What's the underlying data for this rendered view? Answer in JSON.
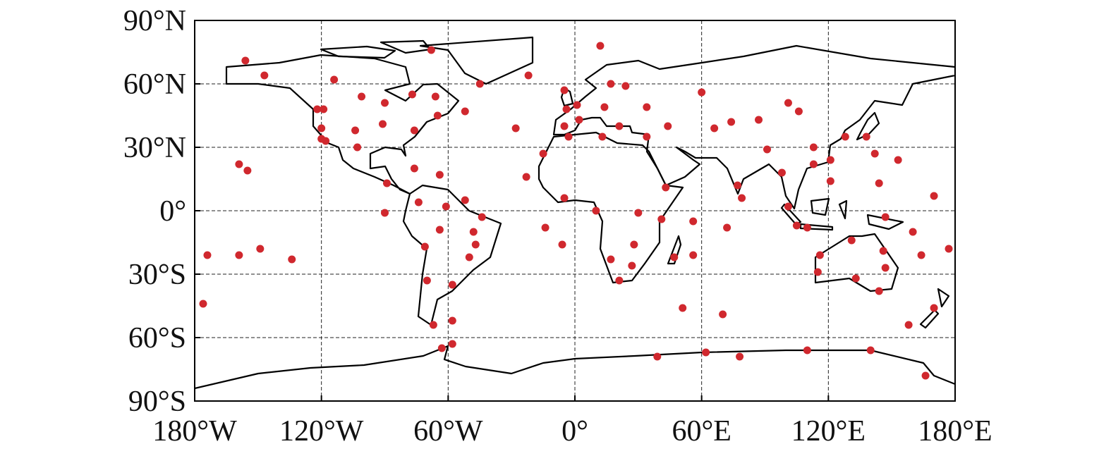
{
  "chart_data": {
    "type": "scatter",
    "xlim": [
      -180,
      180
    ],
    "ylim": [
      -90,
      90
    ],
    "xticks": [
      {
        "value": -180,
        "label": "180°W"
      },
      {
        "value": -120,
        "label": "120°W"
      },
      {
        "value": -60,
        "label": "60°W"
      },
      {
        "value": 0,
        "label": "0°"
      },
      {
        "value": 60,
        "label": "60°E"
      },
      {
        "value": 120,
        "label": "120°E"
      },
      {
        "value": 180,
        "label": "180°E"
      }
    ],
    "yticks": [
      {
        "value": -90,
        "label": "90°S"
      },
      {
        "value": -60,
        "label": "60°S"
      },
      {
        "value": -30,
        "label": "30°S"
      },
      {
        "value": 0,
        "label": "0°"
      },
      {
        "value": 30,
        "label": "30°N"
      },
      {
        "value": 60,
        "label": "60°N"
      },
      {
        "value": 90,
        "label": "90°N"
      }
    ],
    "grid": true,
    "color": "#d0282e",
    "x": [
      -156,
      -147,
      -114,
      -101,
      -68,
      -90,
      -77,
      -66,
      -45,
      -122,
      -119,
      -65,
      -52,
      -120,
      -104,
      -91,
      -76,
      -120,
      -118,
      -103,
      -159,
      -155,
      -76,
      -64,
      -89,
      -74,
      -61,
      -52,
      -44,
      -90,
      -64,
      -48,
      -47,
      -71,
      -50,
      -174,
      -159,
      -149,
      -134,
      -70,
      -58,
      -176,
      -67,
      -58,
      -63,
      -58,
      12,
      -22,
      17,
      24,
      -5,
      1,
      -4,
      14,
      34,
      44,
      2,
      -28,
      -5,
      -3,
      13,
      21,
      34,
      -15,
      -23,
      -5,
      10,
      30,
      41,
      -14,
      -6,
      17,
      28,
      27,
      21,
      43,
      47,
      56,
      56,
      51,
      60,
      66,
      74,
      87,
      91,
      101,
      106,
      77,
      79,
      72,
      98,
      101,
      105,
      110,
      113,
      113,
      121,
      121,
      128,
      138,
      142,
      153,
      144,
      147,
      160,
      131,
      116,
      115,
      133,
      146,
      147,
      144,
      164,
      170,
      177,
      170,
      158,
      166,
      70,
      62,
      78,
      39,
      110,
      140
    ],
    "values": [
      71,
      64,
      62,
      54,
      76,
      51,
      55,
      54,
      60,
      48,
      48,
      45,
      47,
      39,
      38,
      41,
      38,
      34,
      33,
      30,
      22,
      19,
      20,
      17,
      13,
      4,
      2,
      5,
      -3,
      -1,
      -9,
      -10,
      -16,
      -17,
      -22,
      -21,
      -21,
      -18,
      -23,
      -33,
      -35,
      -44,
      -54,
      -52,
      -65,
      -63,
      78,
      64,
      60,
      59,
      57,
      50,
      48,
      49,
      49,
      40,
      43,
      39,
      40,
      35,
      35,
      40,
      35,
      27,
      16,
      6,
      0,
      -1,
      -4,
      -8,
      -16,
      -23,
      -16,
      -26,
      -33,
      11,
      -22,
      -5,
      -21,
      -46,
      56,
      39,
      42,
      43,
      29,
      51,
      47,
      12,
      6,
      -8,
      18,
      2,
      -7,
      -8,
      30,
      22,
      24,
      14,
      35,
      35,
      27,
      24,
      13,
      -3,
      -10,
      -14,
      -21,
      -29,
      -32,
      -19,
      -27,
      -38,
      -21,
      7,
      -18,
      -46,
      -54,
      -78,
      -49,
      -67,
      -69,
      -69,
      -66,
      -66
    ]
  }
}
